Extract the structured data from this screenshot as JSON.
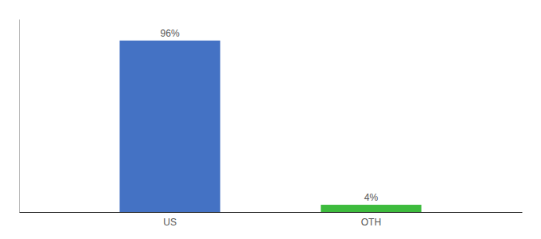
{
  "chart_data": {
    "type": "bar",
    "categories": [
      "US",
      "OTH"
    ],
    "values": [
      96,
      4
    ],
    "value_labels": [
      "96%",
      "4%"
    ],
    "data_labels": true,
    "colors": [
      "#4472c4",
      "#3dbb3d"
    ],
    "ylim": [
      0,
      108
    ],
    "tick_labels": "x"
  }
}
